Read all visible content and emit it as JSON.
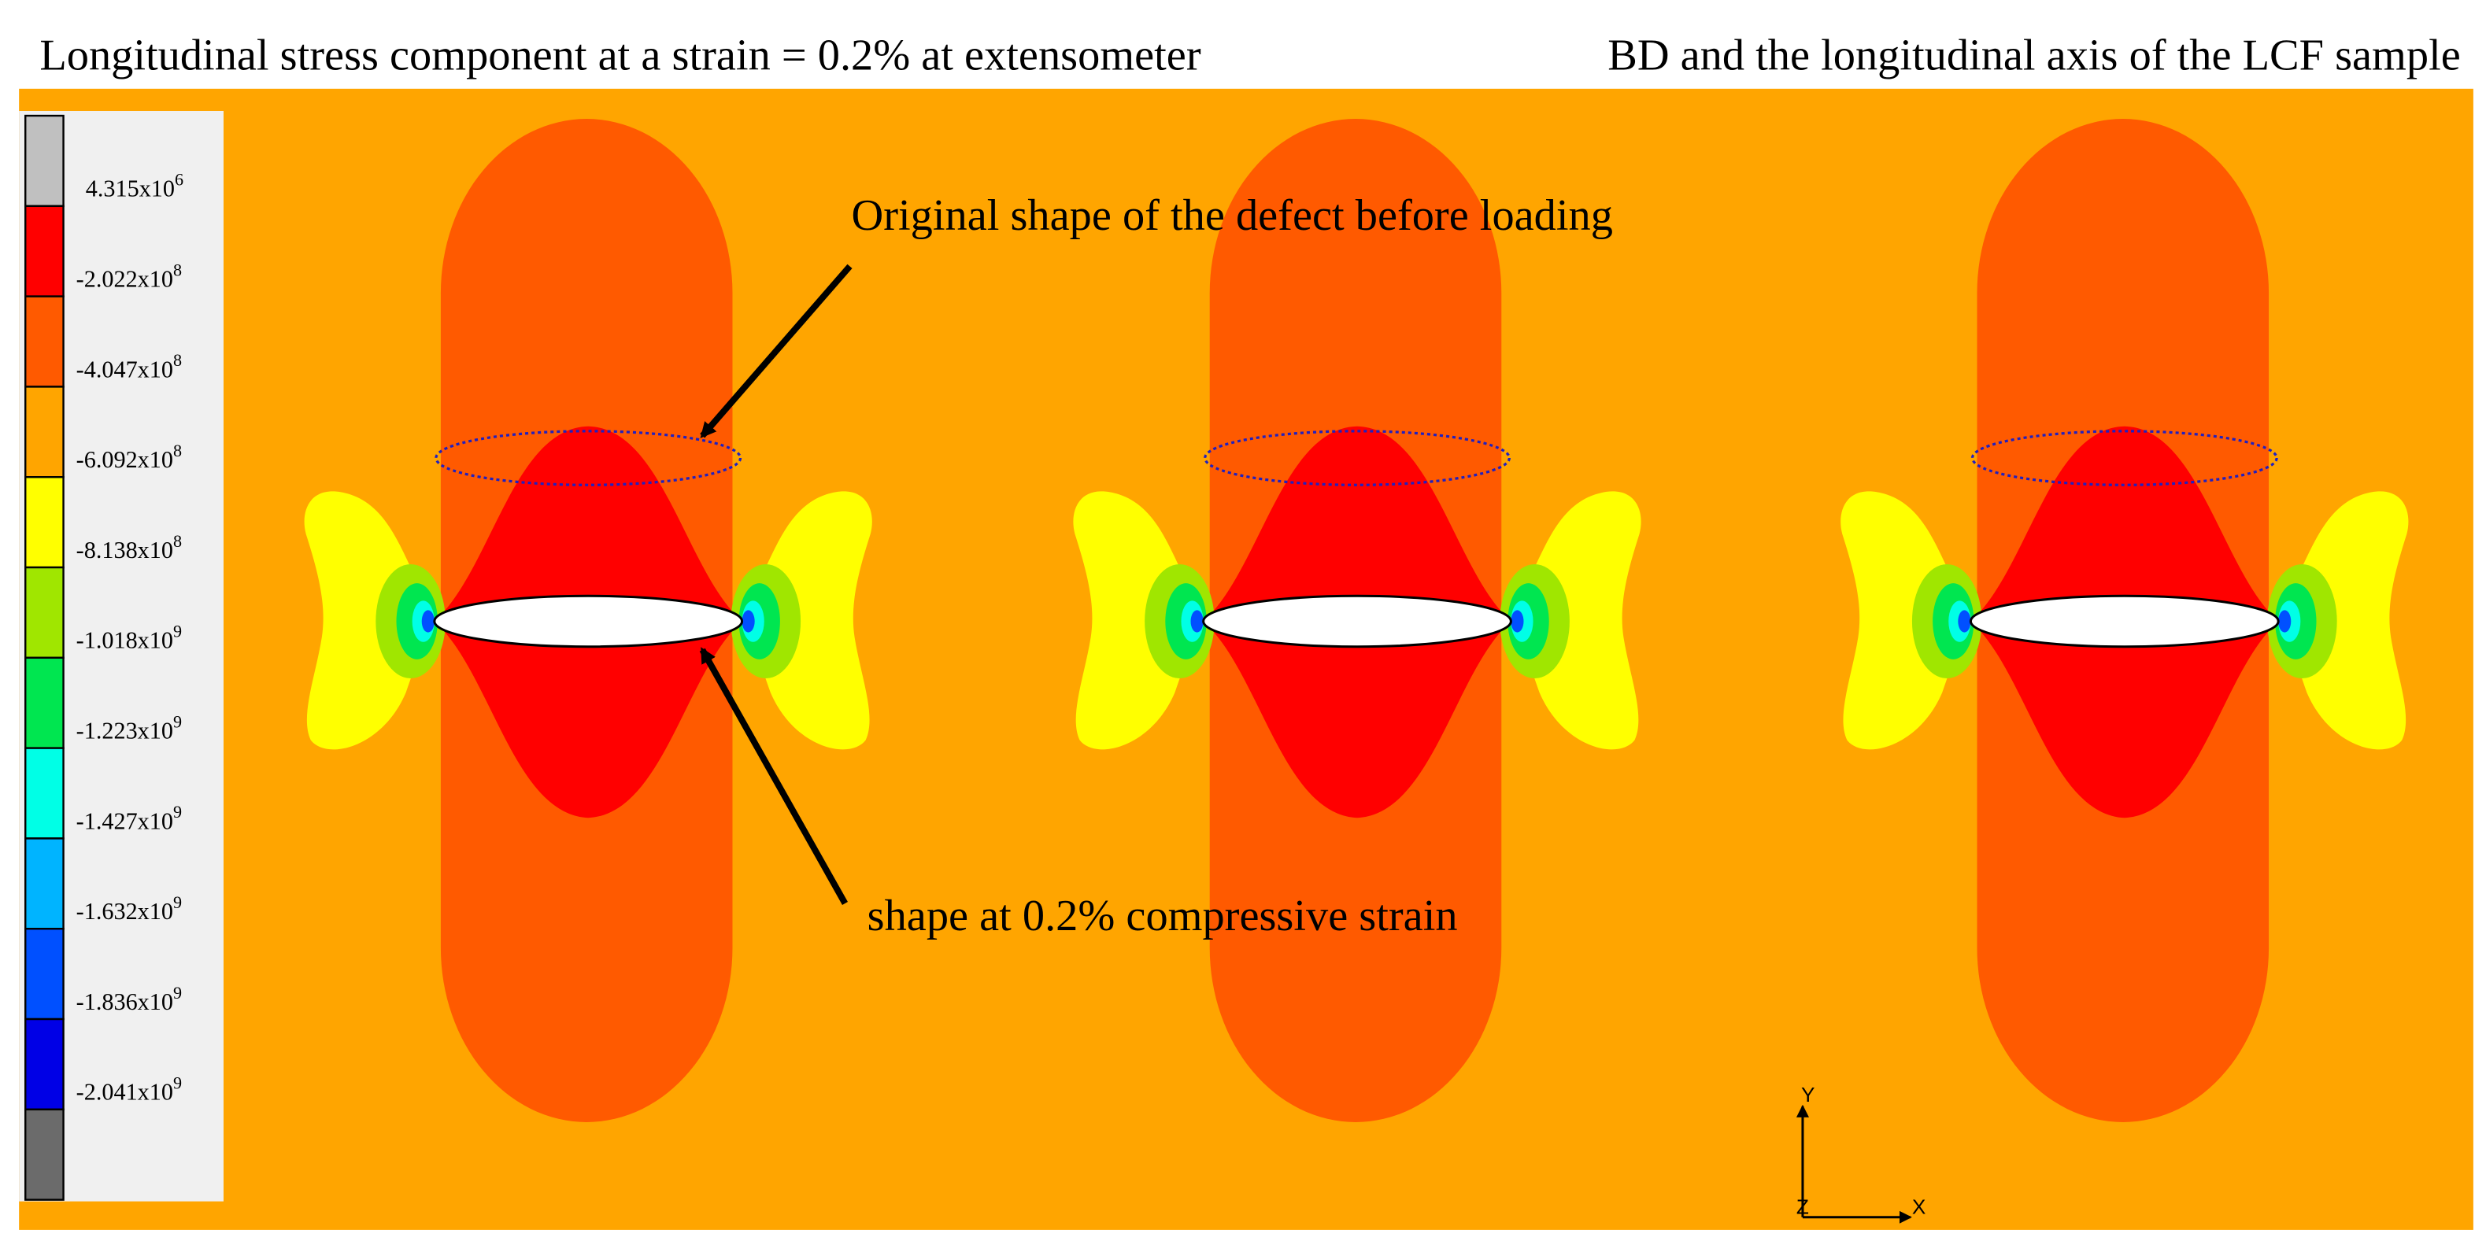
{
  "header": {
    "left_title": "Longitudinal stress component at a strain = 0.2% at extensometer",
    "right_title": "BD and the longitudinal axis of the LCF sample"
  },
  "legend": {
    "colors": [
      "#c0c0c0",
      "#ff0000",
      "#ff5a00",
      "#ffa500",
      "#ffff00",
      "#a0e600",
      "#00e650",
      "#00ffe6",
      "#00b4ff",
      "#0050ff",
      "#0000e6",
      "#6b6b6b"
    ],
    "labels": [
      {
        "mantissa": "4.315x10",
        "exponent": "6"
      },
      {
        "mantissa": "-2.022x10",
        "exponent": "8"
      },
      {
        "mantissa": "-4.047x10",
        "exponent": "8"
      },
      {
        "mantissa": "-6.092x10",
        "exponent": "8"
      },
      {
        "mantissa": "-8.138x10",
        "exponent": "8"
      },
      {
        "mantissa": "-1.018x10",
        "exponent": "9"
      },
      {
        "mantissa": "-1.223x10",
        "exponent": "9"
      },
      {
        "mantissa": "-1.427x10",
        "exponent": "9"
      },
      {
        "mantissa": "-1.632x10",
        "exponent": "9"
      },
      {
        "mantissa": "-1.836x10",
        "exponent": "9"
      },
      {
        "mantissa": "-2.041x10",
        "exponent": "9"
      }
    ]
  },
  "annotations": {
    "original": "Original shape of the defect before loading",
    "deformed": "shape at 0.2% compressive strain"
  },
  "axes": {
    "y": "Y",
    "x": "X",
    "z": "Z"
  }
}
